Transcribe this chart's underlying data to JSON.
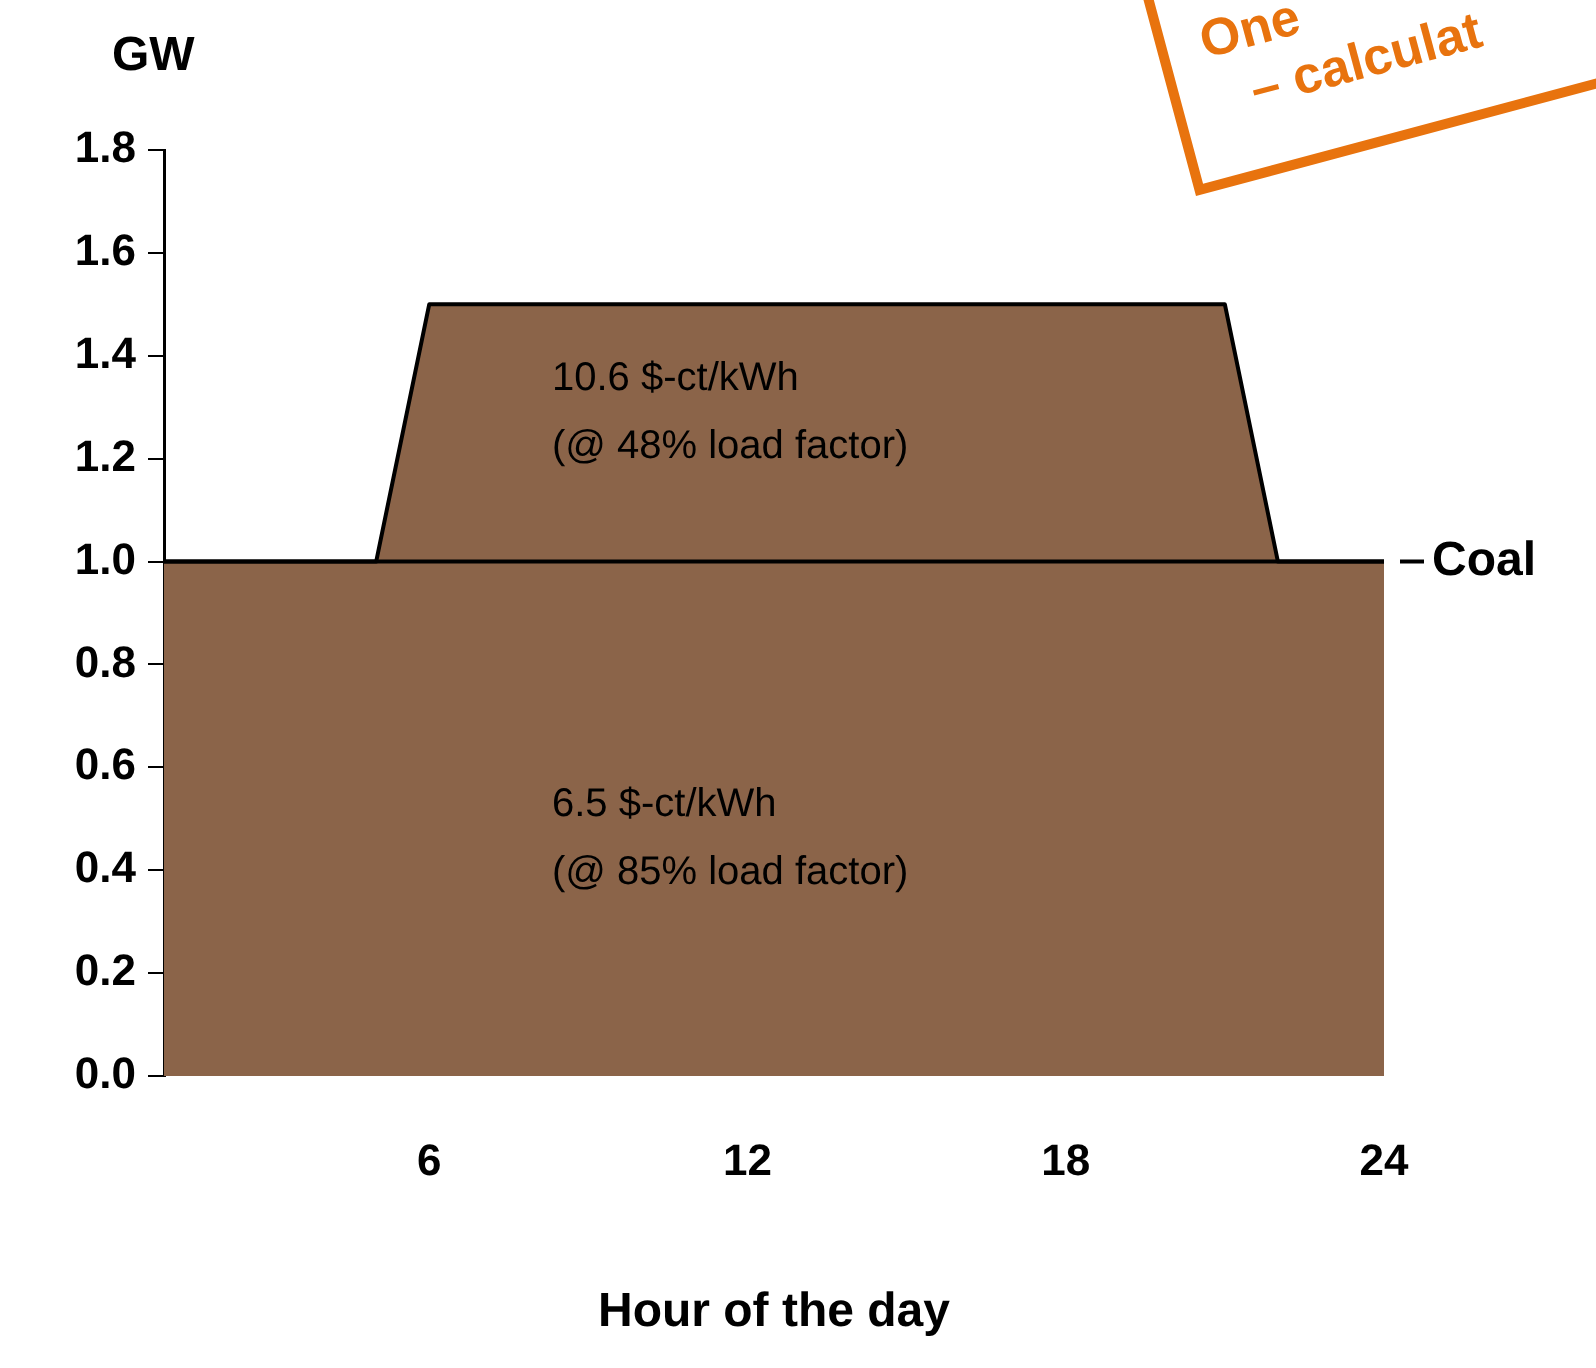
{
  "chart_data": {
    "type": "area",
    "xlabel": "Hour of the day",
    "ylabel": "GW",
    "x": [
      1,
      5,
      6,
      21,
      22,
      24
    ],
    "series": [
      {
        "color": "#8b6449",
        "values": [
          1,
          1,
          1.5,
          1.5,
          1,
          1
        ]
      }
    ],
    "ref_lines": [
      {
        "axis": "y",
        "value": 1.0,
        "label": "Coal",
        "color": "#000000"
      }
    ],
    "xlim": [
      1,
      24
    ],
    "xticks": [
      6,
      12,
      18,
      24
    ],
    "ylim": [
      0,
      1.8
    ],
    "yticks": [
      {
        "value": 0,
        "label": "0.0"
      },
      0.2,
      0.4,
      0.6,
      0.8,
      {
        "value": 1,
        "label": "1.0"
      },
      1.2,
      1.4,
      1.6,
      1.8
    ],
    "grid": false,
    "legend": false,
    "annotations": [
      "10.6 $-ct/kWh\n(@ 48% load factor)",
      "6.5 $-ct/kWh\n(@ 85% load factor)",
      "One",
      "– calculat"
    ]
  }
}
